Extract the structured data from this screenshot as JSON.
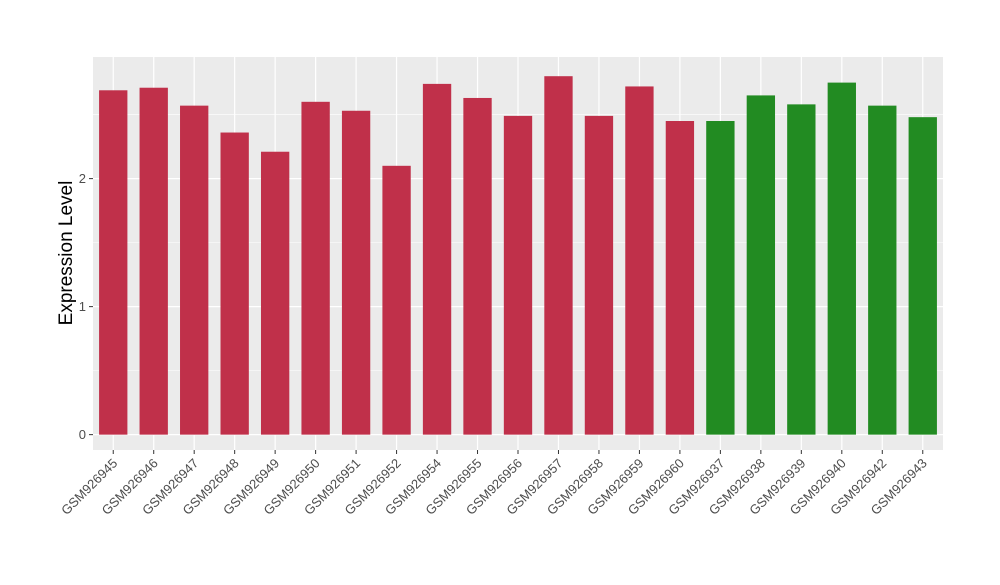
{
  "chart_data": {
    "type": "bar",
    "title": "",
    "xlabel": "",
    "ylabel": "Expression Level",
    "ylim": [
      -0.12,
      2.95
    ],
    "yticks": [
      0,
      1,
      2
    ],
    "ytick_labels": [
      "0",
      "1",
      "2"
    ],
    "grid": true,
    "legend": "none",
    "colors": {
      "group1": "#c0304a",
      "group2": "#228b22",
      "panel_bg": "#ebebeb",
      "grid": "#ffffff"
    },
    "categories": [
      "GSM926945",
      "GSM926946",
      "GSM926947",
      "GSM926948",
      "GSM926949",
      "GSM926950",
      "GSM926951",
      "GSM926952",
      "GSM926954",
      "GSM926955",
      "GSM926956",
      "GSM926957",
      "GSM926958",
      "GSM926959",
      "GSM926960",
      "GSM926937",
      "GSM926938",
      "GSM926939",
      "GSM926940",
      "GSM926942",
      "GSM926943"
    ],
    "values": [
      2.69,
      2.71,
      2.57,
      2.36,
      2.21,
      2.6,
      2.53,
      2.1,
      2.74,
      2.63,
      2.49,
      2.8,
      2.49,
      2.72,
      2.45,
      2.45,
      2.65,
      2.58,
      2.75,
      2.57,
      2.48
    ],
    "bar_groups": [
      "group1",
      "group1",
      "group1",
      "group1",
      "group1",
      "group1",
      "group1",
      "group1",
      "group1",
      "group1",
      "group1",
      "group1",
      "group1",
      "group1",
      "group1",
      "group2",
      "group2",
      "group2",
      "group2",
      "group2",
      "group2"
    ]
  }
}
